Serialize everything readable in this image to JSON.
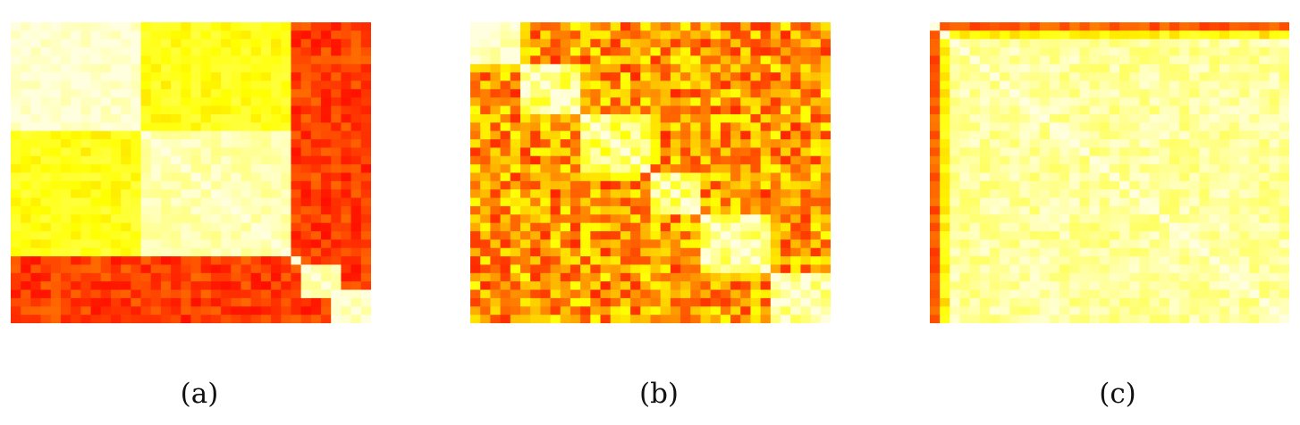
{
  "chart_data": [
    {
      "type": "heatmap",
      "caption": "(a)",
      "n": 36,
      "colormap": [
        "#ff0000",
        "#ffff00",
        "#ffffe0"
      ],
      "description_pattern": "block",
      "blocks": [
        {
          "range": [
            0,
            12
          ],
          "level": 0.97
        },
        {
          "range": [
            13,
            27
          ],
          "level": 0.88
        },
        {
          "range": [
            29,
            32
          ],
          "level": 0.9
        },
        {
          "range": [
            32,
            35
          ],
          "level": 0.92
        }
      ],
      "background_level": 0.12
    },
    {
      "type": "heatmap",
      "caption": "(b)",
      "n": 36,
      "colormap": [
        "#ff0000",
        "#ffff00",
        "#ffffe0"
      ],
      "description_pattern": "diagonal-clusters",
      "blocks": [
        {
          "range": [
            0,
            4
          ],
          "level": 0.9
        },
        {
          "range": [
            5,
            10
          ],
          "level": 0.78
        },
        {
          "range": [
            11,
            17
          ],
          "level": 0.72
        },
        {
          "range": [
            18,
            22
          ],
          "level": 0.75
        },
        {
          "range": [
            23,
            29
          ],
          "level": 0.8
        },
        {
          "range": [
            30,
            35
          ],
          "level": 0.88
        }
      ],
      "background_level": 0.3
    },
    {
      "type": "heatmap",
      "caption": "(c)",
      "n": 36,
      "colormap": [
        "#ff0000",
        "#ffff00",
        "#ffffe0"
      ],
      "description_pattern": "uniform-high-with-red-border",
      "blocks": [],
      "background_level": 0.75
    }
  ]
}
